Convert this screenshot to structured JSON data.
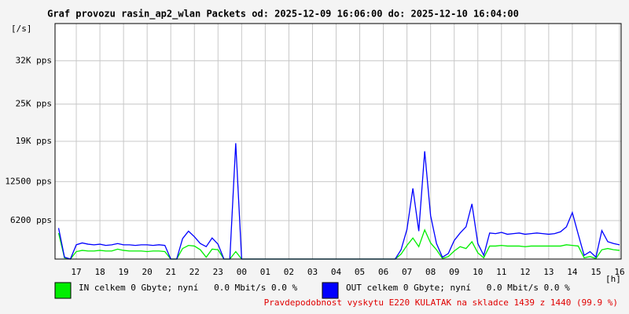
{
  "chart_data": {
    "type": "line",
    "title": "Graf provozu rasin_ap2_wlan Packets od: 2025-12-09 16:06:00 do: 2025-12-10 16:04:00",
    "y_label": "[/s]",
    "x_label": "[h]",
    "footer": "Pravdepodobnost vyskytu E220 KULATAK na skladce 1439 z 1440 (99.9 %)",
    "grid": true,
    "xlim": [
      16.1,
      40.0667
    ],
    "xticks": [
      17,
      18,
      19,
      20,
      21,
      22,
      23,
      {
        "value": 24,
        "label": "00"
      },
      {
        "value": 25,
        "label": "01"
      },
      {
        "value": 26,
        "label": "02"
      },
      {
        "value": 27,
        "label": "03"
      },
      {
        "value": 28,
        "label": "04"
      },
      {
        "value": 29,
        "label": "05"
      },
      {
        "value": 30,
        "label": "06"
      },
      {
        "value": 31,
        "label": "07"
      },
      {
        "value": 32,
        "label": "08"
      },
      {
        "value": 33,
        "label": "09"
      },
      {
        "value": 34,
        "label": "10"
      },
      {
        "value": 35,
        "label": "11"
      },
      {
        "value": 36,
        "label": "12"
      },
      {
        "value": 37,
        "label": "13"
      },
      {
        "value": 38,
        "label": "14"
      },
      {
        "value": 39,
        "label": "15"
      },
      {
        "value": 40,
        "label": "16"
      }
    ],
    "ylim": [
      0,
      38000
    ],
    "yticks": [
      {
        "value": 6200,
        "label": "6200 pps"
      },
      {
        "value": 12500,
        "label": "12500 pps"
      },
      {
        "value": 19000,
        "label": "19K pps"
      },
      {
        "value": 25000,
        "label": "25K pps"
      },
      {
        "value": 32000,
        "label": "32K pps"
      }
    ],
    "x": [
      16.25,
      16.5,
      16.75,
      17,
      17.25,
      17.5,
      17.75,
      18,
      18.25,
      18.5,
      18.75,
      19,
      19.25,
      19.5,
      19.75,
      20,
      20.25,
      20.5,
      20.75,
      21,
      21.25,
      21.5,
      21.75,
      22,
      22.25,
      22.5,
      22.75,
      23,
      23.25,
      23.5,
      23.75,
      24,
      24.25,
      24.5,
      24.75,
      25,
      25.25,
      25.5,
      25.75,
      26,
      26.25,
      26.5,
      26.75,
      27,
      27.25,
      27.5,
      27.75,
      28,
      28.25,
      28.5,
      28.75,
      29,
      29.25,
      29.5,
      29.75,
      30,
      30.25,
      30.5,
      30.75,
      31,
      31.25,
      31.5,
      31.75,
      32,
      32.25,
      32.5,
      32.75,
      33,
      33.25,
      33.5,
      33.75,
      34,
      34.25,
      34.5,
      34.75,
      35,
      35.25,
      35.5,
      35.75,
      36,
      36.25,
      36.5,
      36.75,
      37,
      37.25,
      37.5,
      37.75,
      38,
      38.25,
      38.5,
      38.75,
      39,
      39.25,
      39.5,
      39.75,
      40
    ],
    "series": [
      {
        "name": "IN celkem 0 Gbyte; nyní   0.0 Mbit/s 0.0 %",
        "color": "#00ee00",
        "values": [
          4200,
          200,
          0,
          1200,
          1400,
          1300,
          1300,
          1400,
          1300,
          1300,
          1600,
          1400,
          1300,
          1300,
          1300,
          1200,
          1300,
          1300,
          1200,
          0,
          0,
          1700,
          2200,
          2100,
          1500,
          300,
          1600,
          1500,
          0,
          0,
          1200,
          0,
          0,
          0,
          0,
          0,
          0,
          0,
          0,
          0,
          0,
          0,
          0,
          0,
          0,
          0,
          0,
          0,
          0,
          0,
          0,
          0,
          0,
          0,
          0,
          0,
          0,
          0,
          800,
          2200,
          3400,
          2000,
          4700,
          2600,
          1500,
          100,
          400,
          1300,
          2000,
          1700,
          2800,
          1000,
          200,
          2100,
          2100,
          2200,
          2100,
          2100,
          2100,
          2000,
          2100,
          2100,
          2100,
          2100,
          2100,
          2100,
          2300,
          2200,
          2100,
          200,
          400,
          100,
          1500,
          1700,
          1500,
          1400
        ]
      },
      {
        "name": "OUT celkem 0 Gbyte; nyní   0.0 Mbit/s 0.0 %",
        "color": "#0000ff",
        "values": [
          5000,
          300,
          0,
          2300,
          2600,
          2400,
          2300,
          2400,
          2200,
          2300,
          2500,
          2300,
          2300,
          2200,
          2300,
          2300,
          2200,
          2300,
          2200,
          0,
          0,
          3300,
          4500,
          3600,
          2500,
          2000,
          3400,
          2400,
          0,
          0,
          18700,
          0,
          0,
          0,
          0,
          0,
          0,
          0,
          0,
          0,
          0,
          0,
          0,
          0,
          0,
          0,
          0,
          0,
          0,
          0,
          0,
          0,
          0,
          0,
          0,
          0,
          0,
          0,
          1500,
          4800,
          11400,
          4500,
          17400,
          7000,
          2500,
          300,
          900,
          3000,
          4200,
          5200,
          8900,
          2500,
          600,
          4200,
          4100,
          4300,
          4000,
          4100,
          4200,
          4000,
          4100,
          4200,
          4100,
          4000,
          4100,
          4400,
          5200,
          7500,
          4000,
          600,
          1200,
          300,
          4600,
          2800,
          2500,
          2300
        ]
      }
    ]
  }
}
